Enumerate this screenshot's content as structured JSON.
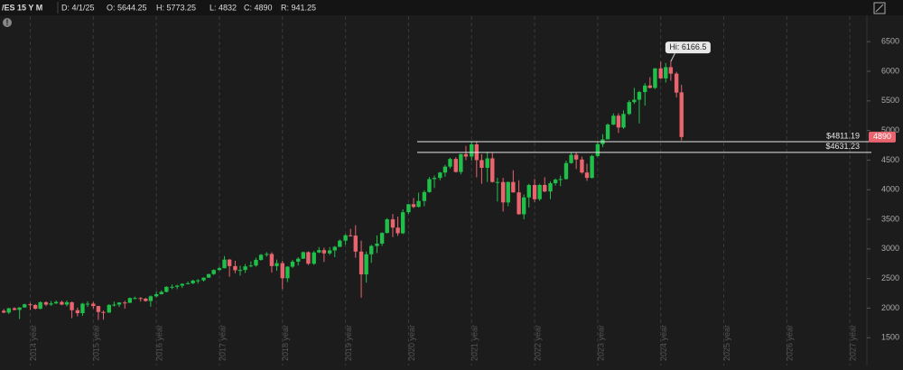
{
  "header": {
    "symbol": "/ES 15 Y M",
    "date": "D: 4/1/25",
    "open": "O: 5644.25",
    "high": "H: 5773.25",
    "low": "L: 4832",
    "close": "C: 4890",
    "range": "R: 941.25"
  },
  "chart_data": {
    "type": "candlestick",
    "up_color": "#1fbf4a",
    "down_color": "#e9646e",
    "grid": true,
    "xlim": [
      2014.44,
      2028.19
    ],
    "ylim": [
      1260,
      6930
    ],
    "yticks": [
      1500,
      2000,
      2500,
      3000,
      3500,
      4000,
      4500,
      5000,
      5500,
      6000,
      6500
    ],
    "xticks": [
      {
        "value": 2014.92,
        "label": "2014 year"
      },
      {
        "value": 2015.92,
        "label": "2015 year"
      },
      {
        "value": 2016.92,
        "label": "2016 year"
      },
      {
        "value": 2017.92,
        "label": "2017 year"
      },
      {
        "value": 2018.92,
        "label": "2018 year"
      },
      {
        "value": 2019.92,
        "label": "2019 year"
      },
      {
        "value": 2020.92,
        "label": "2020 year"
      },
      {
        "value": 2021.92,
        "label": "2021 year"
      },
      {
        "value": 2022.92,
        "label": "2022 year"
      },
      {
        "value": 2023.92,
        "label": "2023 year"
      },
      {
        "value": 2024.92,
        "label": "2024 year"
      },
      {
        "value": 2025.92,
        "label": "2025 year"
      },
      {
        "value": 2026.92,
        "label": "2026 year"
      },
      {
        "value": 2027.92,
        "label": "2027 year"
      }
    ],
    "x": [
      2014.5,
      2014.58,
      2014.67,
      2014.75,
      2014.83,
      2014.92,
      2015,
      2015.08,
      2015.17,
      2015.25,
      2015.33,
      2015.42,
      2015.5,
      2015.58,
      2015.67,
      2015.75,
      2015.83,
      2015.92,
      2016,
      2016.08,
      2016.17,
      2016.25,
      2016.33,
      2016.42,
      2016.5,
      2016.58,
      2016.67,
      2016.75,
      2016.83,
      2016.92,
      2017,
      2017.08,
      2017.17,
      2017.25,
      2017.33,
      2017.42,
      2017.5,
      2017.58,
      2017.67,
      2017.75,
      2017.83,
      2017.92,
      2018,
      2018.08,
      2018.17,
      2018.25,
      2018.33,
      2018.42,
      2018.5,
      2018.58,
      2018.67,
      2018.75,
      2018.83,
      2018.92,
      2019,
      2019.08,
      2019.17,
      2019.25,
      2019.33,
      2019.42,
      2019.5,
      2019.58,
      2019.67,
      2019.75,
      2019.83,
      2019.92,
      2020,
      2020.08,
      2020.17,
      2020.25,
      2020.33,
      2020.42,
      2020.5,
      2020.58,
      2020.67,
      2020.75,
      2020.83,
      2020.92,
      2021,
      2021.08,
      2021.17,
      2021.25,
      2021.33,
      2021.42,
      2021.5,
      2021.58,
      2021.67,
      2021.75,
      2021.83,
      2021.92,
      2022,
      2022.08,
      2022.17,
      2022.25,
      2022.33,
      2022.42,
      2022.5,
      2022.58,
      2022.67,
      2022.75,
      2022.83,
      2022.92,
      2023,
      2023.08,
      2023.17,
      2023.25,
      2023.33,
      2023.42,
      2023.5,
      2023.58,
      2023.67,
      2023.75,
      2023.83,
      2023.92,
      2024,
      2024.08,
      2024.17,
      2024.25,
      2024.33,
      2024.42,
      2024.5,
      2024.58,
      2024.67,
      2024.75,
      2024.83,
      2024.92,
      2025,
      2025.08,
      2025.17,
      2025.25
    ],
    "open": [
      1955,
      1925,
      1998,
      1970,
      2012,
      2065,
      2053,
      1990,
      2100,
      2060,
      2080,
      2105,
      2060,
      2100,
      1965,
      1915,
      2075,
      2075,
      2035,
      1935,
      1925,
      2055,
      2060,
      2095,
      2090,
      2170,
      2170,
      2160,
      2120,
      2200,
      2235,
      2275,
      2360,
      2360,
      2380,
      2410,
      2420,
      2465,
      2470,
      2515,
      2575,
      2645,
      2675,
      2820,
      2710,
      2640,
      2645,
      2705,
      2720,
      2815,
      2900,
      2915,
      2710,
      2760,
      2505,
      2700,
      2785,
      2835,
      2945,
      2750,
      2940,
      2980,
      2925,
      2975,
      3035,
      3140,
      3230,
      3225,
      2955,
      2570,
      2910,
      3050,
      3090,
      3270,
      3500,
      3360,
      3265,
      3620,
      3755,
      3710,
      3810,
      3960,
      4180,
      4200,
      4290,
      4390,
      4520,
      4300,
      4600,
      4560,
      4766,
      4500,
      4370,
      4530,
      4130,
      4130,
      3785,
      4130,
      3955,
      3585,
      3870,
      4080,
      3840,
      4080,
      3970,
      4110,
      4170,
      4180,
      4450,
      4590,
      4510,
      4290,
      4200,
      4570,
      4770,
      4850,
      5100,
      5250,
      5050,
      5280,
      5480,
      5520,
      5650,
      5760,
      5720,
      6050,
      5880,
      6070,
      5960,
      5644.25
    ],
    "high": [
      1985,
      2005,
      2015,
      2015,
      2075,
      2090,
      2070,
      2115,
      2115,
      2120,
      2130,
      2125,
      2130,
      2110,
      2010,
      2090,
      2115,
      2105,
      2040,
      1960,
      2065,
      2110,
      2100,
      2125,
      2180,
      2195,
      2185,
      2175,
      2215,
      2280,
      2300,
      2370,
      2400,
      2395,
      2420,
      2450,
      2480,
      2490,
      2520,
      2580,
      2655,
      2700,
      2880,
      2830,
      2800,
      2715,
      2745,
      2790,
      2850,
      2915,
      2945,
      2945,
      2820,
      2800,
      2710,
      2815,
      2860,
      2955,
      2960,
      2965,
      3030,
      3020,
      3030,
      3050,
      3160,
      3250,
      3340,
      3400,
      3140,
      2955,
      3070,
      3230,
      3280,
      3520,
      3590,
      3545,
      3670,
      3760,
      3860,
      3950,
      3990,
      4215,
      4240,
      4300,
      4420,
      4540,
      4550,
      4610,
      4740,
      4810,
      4820,
      4600,
      4640,
      4620,
      4200,
      4200,
      4140,
      4330,
      4160,
      3920,
      4100,
      4180,
      4100,
      4210,
      4140,
      4190,
      4240,
      4490,
      4630,
      4630,
      4560,
      4440,
      4590,
      4820,
      4940,
      5120,
      5290,
      5290,
      5340,
      5510,
      5720,
      5670,
      5800,
      5900,
      6050,
      6160,
      6140,
      6166.5,
      5990,
      5773.25
    ],
    "low": [
      1915,
      1900,
      1960,
      1815,
      2005,
      1970,
      1975,
      1980,
      2035,
      2040,
      2070,
      2050,
      2030,
      1830,
      1860,
      1870,
      2020,
      1990,
      1800,
      1805,
      1920,
      2025,
      2020,
      1990,
      2085,
      2150,
      2110,
      2110,
      2025,
      2180,
      2230,
      2265,
      2320,
      2320,
      2340,
      2400,
      2405,
      2415,
      2450,
      2510,
      2560,
      2630,
      2670,
      2530,
      2590,
      2550,
      2595,
      2690,
      2700,
      2800,
      2870,
      2600,
      2630,
      2320,
      2440,
      2680,
      2720,
      2830,
      2730,
      2730,
      2930,
      2780,
      2900,
      2860,
      3030,
      3070,
      3210,
      2850,
      2175,
      2430,
      2765,
      2930,
      3050,
      3260,
      3200,
      3220,
      3250,
      3590,
      3690,
      3700,
      3720,
      3950,
      4030,
      4160,
      4220,
      4360,
      4290,
      4260,
      4500,
      4490,
      4210,
      4100,
      4130,
      4120,
      3800,
      3630,
      3720,
      3950,
      3580,
      3500,
      3700,
      3790,
      3810,
      3960,
      3840,
      4070,
      4060,
      4170,
      4440,
      4350,
      4270,
      4150,
      4190,
      4550,
      4720,
      4860,
      5090,
      4960,
      5030,
      5260,
      5450,
      5120,
      5420,
      5710,
      5700,
      5870,
      5810,
      5840,
      5560,
      4832
    ],
    "close": [
      1925,
      1998,
      1970,
      2012,
      2065,
      2053,
      1990,
      2100,
      2060,
      2080,
      2105,
      2060,
      2100,
      1965,
      1915,
      2075,
      2075,
      2035,
      1935,
      1925,
      2055,
      2060,
      2095,
      2090,
      2170,
      2170,
      2160,
      2120,
      2200,
      2235,
      2275,
      2360,
      2360,
      2380,
      2410,
      2420,
      2465,
      2470,
      2515,
      2575,
      2645,
      2675,
      2820,
      2710,
      2640,
      2645,
      2705,
      2720,
      2815,
      2900,
      2915,
      2710,
      2760,
      2505,
      2700,
      2785,
      2835,
      2945,
      2750,
      2940,
      2980,
      2925,
      2975,
      3035,
      3140,
      3230,
      3225,
      2955,
      2570,
      2910,
      3050,
      3090,
      3270,
      3500,
      3360,
      3265,
      3620,
      3755,
      3710,
      3810,
      3960,
      4180,
      4200,
      4290,
      4390,
      4520,
      4300,
      4600,
      4560,
      4766,
      4500,
      4370,
      4530,
      4130,
      4130,
      3785,
      4130,
      3955,
      3585,
      3870,
      4080,
      3840,
      4080,
      3970,
      4110,
      4170,
      4180,
      4450,
      4590,
      4510,
      4290,
      4200,
      4570,
      4770,
      4850,
      5100,
      5250,
      5050,
      5280,
      5480,
      5520,
      5650,
      5760,
      5720,
      6050,
      5880,
      6070,
      5960,
      5640,
      4890
    ],
    "annotation": {
      "value": 6166.5,
      "label": "Hi: 6166.5"
    },
    "hlines": [
      {
        "value": 4811.19,
        "label": "$4811.19"
      },
      {
        "value": 4631.23,
        "label": "$4631.23"
      }
    ],
    "last_price": 4890
  }
}
